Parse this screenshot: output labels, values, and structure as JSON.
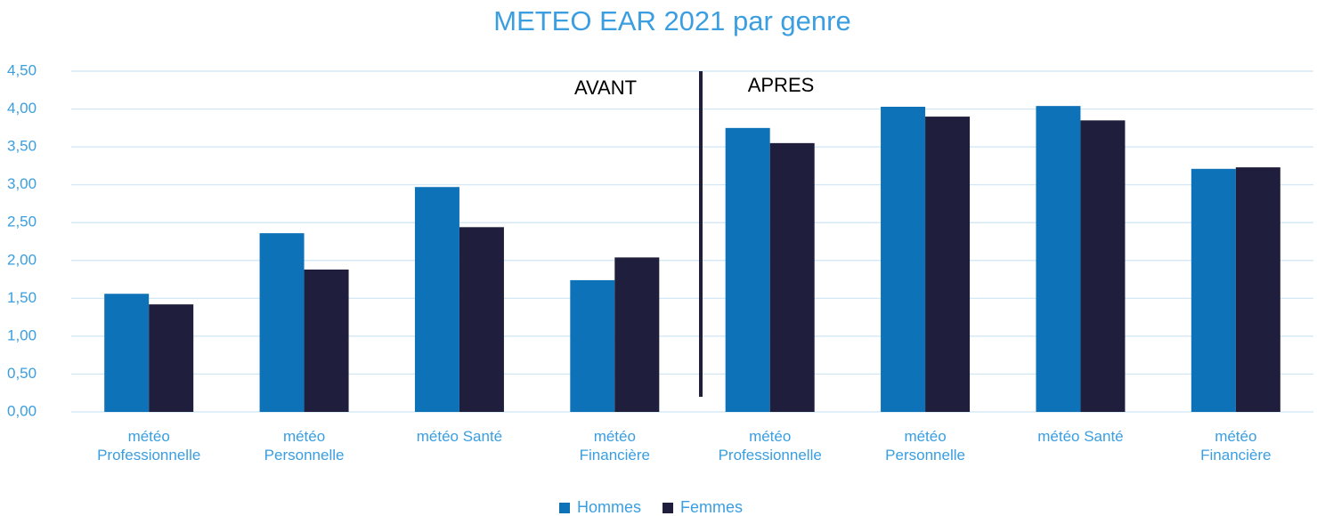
{
  "chart_data": {
    "type": "bar",
    "title": "METEO EAR 2021 par genre",
    "categories": [
      "météo Professionnelle",
      "météo Personnelle",
      "météo Santé",
      "météo Financière",
      "météo Professionnelle",
      "météo Personnelle",
      "météo Santé",
      "météo Financière"
    ],
    "series": [
      {
        "name": "Hommes",
        "color": "#0e72b9",
        "values": [
          1.56,
          2.36,
          2.97,
          1.74,
          3.75,
          4.03,
          4.04,
          3.21
        ]
      },
      {
        "name": "Femmes",
        "color": "#1f1f3d",
        "values": [
          1.42,
          1.88,
          2.44,
          2.04,
          3.55,
          3.9,
          3.85,
          3.23
        ]
      }
    ],
    "annotations": [
      "AVANT",
      "APRES"
    ],
    "ylim": [
      0,
      4.5
    ],
    "yticks": [
      {
        "value": 0,
        "label": "0,00"
      },
      {
        "value": 0.5,
        "label": "0,50"
      },
      {
        "value": 1,
        "label": "1,00"
      },
      {
        "value": 1.5,
        "label": "1,50"
      },
      {
        "value": 2,
        "label": "2,00"
      },
      {
        "value": 2.5,
        "label": "2,50"
      },
      {
        "value": 3,
        "label": "3,00"
      },
      {
        "value": 3.5,
        "label": "3,50"
      },
      {
        "value": 4,
        "label": "4,00"
      },
      {
        "value": 4.5,
        "label": "4,50"
      }
    ],
    "grid": true,
    "legend": "bottom"
  }
}
